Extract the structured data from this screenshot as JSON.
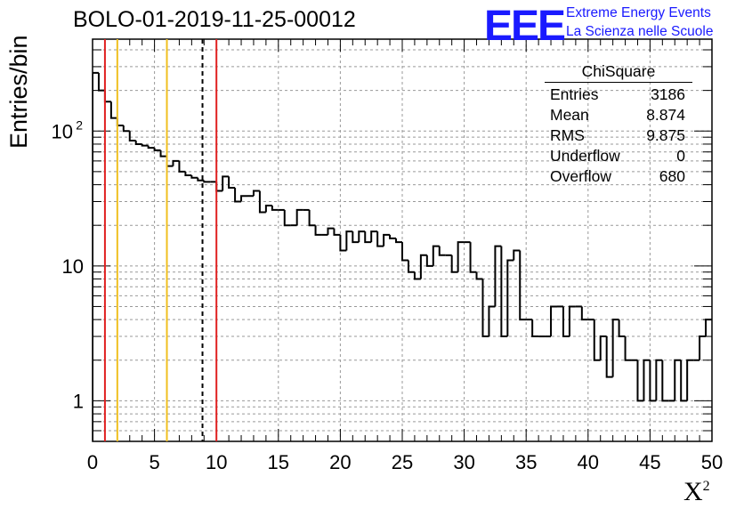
{
  "chart_data": {
    "type": "bar",
    "title": "BOLO-01-2019-11-25-00012",
    "ylabel": "Entries/bin",
    "xlabel_main": "X",
    "xlabel_sup": "2",
    "xlim": [
      0,
      50
    ],
    "ylim": [
      0.5,
      480
    ],
    "log_y": true,
    "grid": true,
    "bin_width": 0.5,
    "x_ticks": [
      "0",
      "5",
      "10",
      "15",
      "20",
      "25",
      "30",
      "35",
      "40",
      "45",
      "50"
    ],
    "y_ticks": [
      {
        "value": 1,
        "label": "1"
      },
      {
        "value": 10,
        "label": "10"
      },
      {
        "value": 100,
        "label": "10",
        "sup": "2"
      }
    ],
    "values": [
      270,
      200,
      165,
      125,
      110,
      100,
      85,
      80,
      78,
      75,
      72,
      65,
      55,
      60,
      50,
      47,
      45,
      43,
      42,
      42,
      36,
      46,
      38,
      30,
      33,
      33,
      36,
      25,
      28,
      26,
      26,
      20,
      20,
      26,
      26,
      20,
      17,
      17,
      19,
      17,
      13,
      18,
      15,
      18,
      15,
      18,
      14,
      17,
      16,
      15,
      11,
      9,
      8,
      12,
      10,
      14,
      12,
      12,
      9,
      15,
      15,
      9,
      8,
      3,
      5,
      14,
      3,
      11,
      13,
      4,
      4,
      3,
      3,
      3,
      5,
      5,
      3,
      5,
      5,
      4,
      4,
      2,
      3,
      1.5,
      4,
      3,
      2,
      2,
      1,
      2,
      1,
      2,
      1,
      1,
      2,
      1,
      2,
      2,
      3,
      4
    ],
    "vertical_lines": [
      {
        "x": 1,
        "color": "#e02020",
        "style": "solid"
      },
      {
        "x": 2,
        "color": "#f0c020",
        "style": "solid"
      },
      {
        "x": 6,
        "color": "#f0c020",
        "style": "solid"
      },
      {
        "x": 8.874,
        "color": "#000000",
        "style": "dashed"
      },
      {
        "x": 10,
        "color": "#e02020",
        "style": "solid"
      }
    ]
  },
  "logo": {
    "mark": "EEE",
    "line1": "Extreme Energy Events",
    "line2": "La Scienza nelle Scuole",
    "color": "#1a1aff"
  },
  "stats": {
    "name": "ChiSquare",
    "rows": [
      {
        "label": "Entries",
        "value": "3186"
      },
      {
        "label": "Mean",
        "value": "8.874"
      },
      {
        "label": "RMS",
        "value": "9.875"
      },
      {
        "label": "Underflow",
        "value": "0"
      },
      {
        "label": "Overflow",
        "value": "680"
      }
    ]
  }
}
